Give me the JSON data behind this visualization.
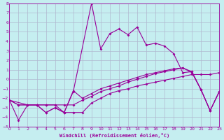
{
  "xlabel": "Windchill (Refroidissement éolien,°C)",
  "bg_color": "#c5eef0",
  "grid_color": "#b0b8d0",
  "line_color": "#990099",
  "ylim": [
    -5,
    8
  ],
  "xlim": [
    0,
    23
  ],
  "yticks": [
    -5,
    -4,
    -3,
    -2,
    -1,
    0,
    1,
    2,
    3,
    4,
    5,
    6,
    7,
    8
  ],
  "xticks": [
    0,
    1,
    2,
    3,
    4,
    5,
    6,
    7,
    8,
    9,
    10,
    11,
    12,
    13,
    14,
    15,
    16,
    17,
    18,
    19,
    20,
    21,
    22,
    23
  ],
  "line1_x": [
    0,
    1,
    2,
    3,
    4,
    5,
    6,
    7,
    9,
    10,
    11,
    12,
    13,
    14,
    15,
    16,
    17,
    18,
    19,
    20,
    21,
    22,
    23
  ],
  "line1_y": [
    -2.2,
    -2.7,
    -2.7,
    -2.7,
    -3.5,
    -3.0,
    -3.5,
    -1.3,
    8.0,
    3.2,
    4.8,
    5.3,
    4.7,
    5.5,
    3.6,
    3.8,
    3.5,
    2.7,
    0.7,
    0.8,
    -1.1,
    -3.3,
    -1.3
  ],
  "line2_x": [
    0,
    1,
    2,
    3,
    4,
    5,
    6,
    7,
    8,
    9,
    10,
    11,
    12,
    13,
    14,
    15,
    16,
    17,
    18,
    19,
    20,
    21,
    22,
    23
  ],
  "line2_y": [
    -2.2,
    -4.3,
    -2.7,
    -2.7,
    -3.5,
    -3.0,
    -3.5,
    -3.5,
    -3.5,
    -2.5,
    -2.0,
    -1.5,
    -1.2,
    -1.0,
    -0.7,
    -0.5,
    -0.3,
    -0.1,
    0.1,
    0.3,
    0.5,
    0.5,
    0.5,
    0.7
  ],
  "line3_x": [
    0,
    1,
    2,
    3,
    4,
    5,
    6,
    7,
    8,
    9,
    10,
    11,
    12,
    13,
    14,
    15,
    16,
    17,
    18,
    19,
    20,
    21,
    22,
    23
  ],
  "line3_y": [
    -2.2,
    -2.7,
    -2.7,
    -2.7,
    -2.7,
    -2.7,
    -3.5,
    -1.2,
    -2.0,
    -1.5,
    -1.0,
    -0.7,
    -0.4,
    -0.1,
    0.2,
    0.5,
    0.7,
    0.9,
    1.1,
    1.2,
    0.8,
    -1.1,
    -3.3,
    -1.3
  ],
  "line4_x": [
    0,
    2,
    3,
    4,
    5,
    6,
    7,
    8,
    9,
    10,
    11,
    12,
    13,
    14,
    15,
    16,
    17,
    18,
    19,
    20,
    21,
    22,
    23
  ],
  "line4_y": [
    -2.2,
    -2.7,
    -2.7,
    -2.7,
    -2.7,
    -2.7,
    -2.7,
    -2.2,
    -1.8,
    -1.3,
    -1.0,
    -0.7,
    -0.3,
    0.0,
    0.3,
    0.6,
    0.8,
    1.0,
    1.2,
    0.7,
    -1.1,
    -3.3,
    -1.3
  ]
}
